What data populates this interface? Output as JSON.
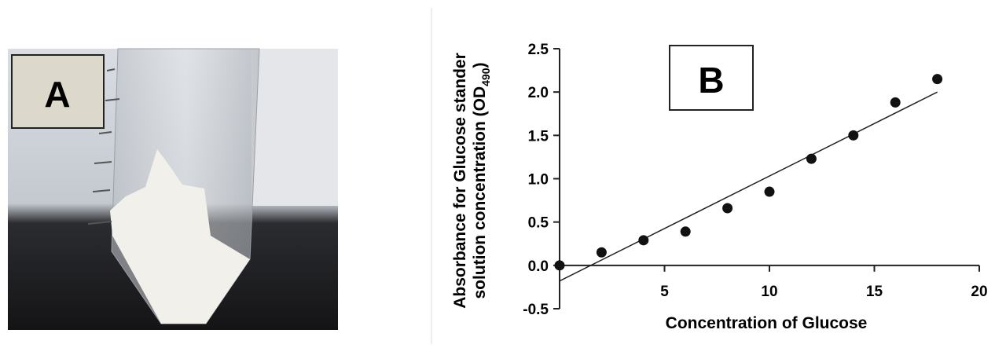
{
  "photo_label": "A",
  "chart_data": {
    "type": "scatter",
    "panel_label": "B",
    "xlabel": "Concentration of Glucose",
    "ylabel": [
      "Absorbance for Glucose stander",
      "solution concentration (OD",
      "490",
      ")"
    ],
    "x": [
      0,
      2,
      4,
      6,
      8,
      10,
      12,
      14,
      16,
      18
    ],
    "values": [
      0,
      0.15,
      0.29,
      0.39,
      0.66,
      0.85,
      1.23,
      1.5,
      1.88,
      2.15
    ],
    "color": "#111111",
    "fit_line": {
      "x": [
        0,
        18
      ],
      "y": [
        -0.18,
        2.0
      ]
    },
    "xlim": [
      0,
      20
    ],
    "xticks": [
      5,
      10,
      15,
      20
    ],
    "ylim": [
      -0.5,
      2.5
    ],
    "yticks": [
      -0.5,
      {
        "value": 0,
        "label": "0.0"
      },
      0.5,
      {
        "value": 1,
        "label": "1.0"
      },
      1.5,
      {
        "value": 2,
        "label": "2.0"
      },
      2.5
    ]
  }
}
